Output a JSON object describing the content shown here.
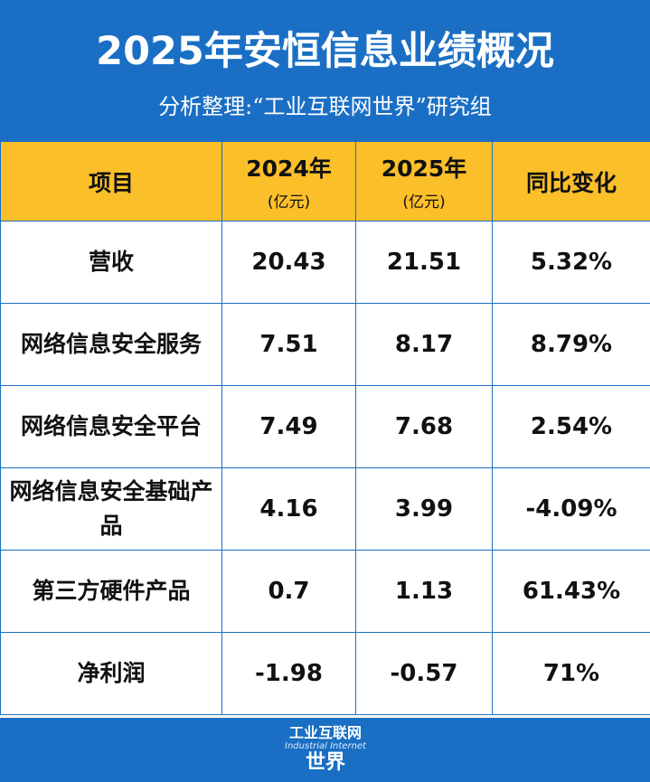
{
  "header": {
    "title": "2025年安恒信息业绩概况",
    "subtitle": "分析整理:“工业互联网世界”研究组"
  },
  "table": {
    "columns": [
      {
        "label": "项目",
        "unit": ""
      },
      {
        "label": "2024年",
        "unit": "(亿元)"
      },
      {
        "label": "2025年",
        "unit": "(亿元)"
      },
      {
        "label": "同比变化",
        "unit": ""
      }
    ],
    "rows": [
      {
        "item": "营收",
        "y2024": "20.43",
        "y2025": "21.51",
        "change": "5.32%"
      },
      {
        "item": "网络信息安全服务",
        "y2024": "7.51",
        "y2025": "8.17",
        "change": "8.79%"
      },
      {
        "item": "网络信息安全平台",
        "y2024": "7.49",
        "y2025": "7.68",
        "change": "2.54%"
      },
      {
        "item": "网络信息安全基础产品",
        "y2024": "4.16",
        "y2025": "3.99",
        "change": "-4.09%"
      },
      {
        "item": "第三方硬件产品",
        "y2024": "0.7",
        "y2025": "1.13",
        "change": "61.43%"
      },
      {
        "item": "净利润",
        "y2024": "-1.98",
        "y2025": "-0.57",
        "change": "71%"
      }
    ]
  },
  "footer": {
    "logo_top": "工业互联网",
    "logo_en": "Industrial Internet",
    "logo_bottom": "世界"
  },
  "colors": {
    "header_blue": "#1a6fc4",
    "header_row_yellow": "#fbbf2a"
  }
}
